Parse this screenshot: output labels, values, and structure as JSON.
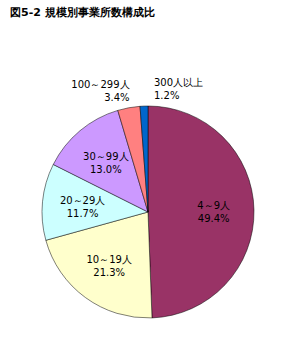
{
  "chart_data": {
    "type": "pie",
    "title": "図5-2 規模別事業所数構成比",
    "categories": [
      "4～9人",
      "10～19人",
      "20～29人",
      "30～99人",
      "100～299人",
      "300人以上"
    ],
    "values": [
      49.4,
      21.3,
      11.7,
      13.0,
      3.4,
      1.2
    ],
    "value_labels": [
      "49.4%",
      "21.3%",
      "11.7%",
      "13.0%",
      "3.4%",
      "1.2%"
    ],
    "colors": [
      "#993366",
      "#ffffcc",
      "#ccffff",
      "#cc99ff",
      "#ff8080",
      "#0066cc"
    ],
    "data_labels": true
  }
}
